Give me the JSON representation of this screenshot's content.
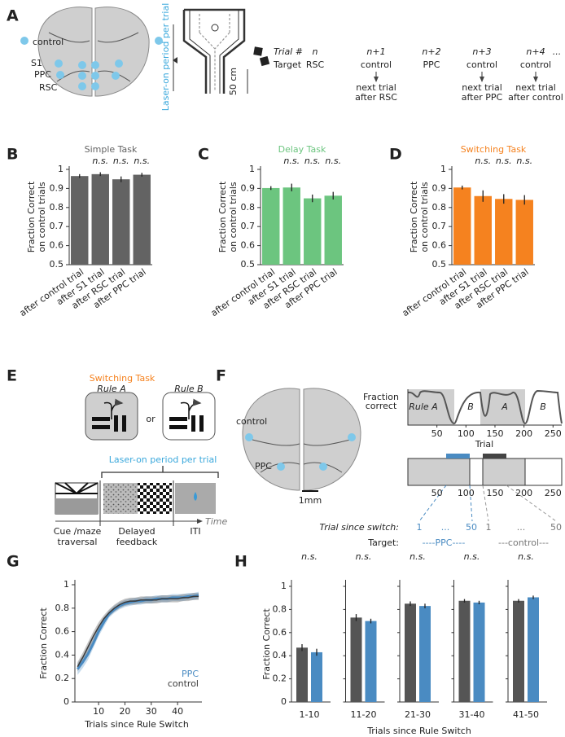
{
  "panel_labels": [
    "A",
    "B",
    "C",
    "D",
    "E",
    "F",
    "G",
    "H"
  ],
  "panel_a": {
    "brain_labels": [
      "control",
      "S1",
      "PPC",
      "RSC"
    ],
    "laser_label": "Laser-on period per trial",
    "scale_label": "50 cm",
    "trial_header": "Trial #",
    "target_header": "Target",
    "trials": [
      "n",
      "n+1",
      "n+2",
      "n+3",
      "n+4",
      "..."
    ],
    "targets": [
      "RSC",
      "control",
      "PPC",
      "control",
      "control"
    ],
    "notes": [
      [
        "next trial",
        "after RSC"
      ],
      [
        "next trial",
        "after PPC"
      ],
      [
        "next trial",
        "after control"
      ]
    ]
  },
  "chart_data": [
    {
      "type": "bar",
      "title": "Simple Task",
      "color": "#636363",
      "ylabel": [
        "Fraction Correct",
        "on control trials"
      ],
      "categories": [
        "after control trial",
        "after S1 trial",
        "after RSC trial",
        "after PPC trial"
      ],
      "values": [
        0.965,
        0.975,
        0.948,
        0.972
      ],
      "errors": [
        0.01,
        0.01,
        0.015,
        0.01
      ],
      "annotations": [
        {
          "index": 1,
          "label": "n.s."
        },
        {
          "index": 2,
          "label": "n.s."
        },
        {
          "index": 3,
          "label": "n.s."
        }
      ],
      "ylim": [
        0.5,
        1
      ],
      "yticks": [
        0.5,
        0.6,
        0.7,
        0.8,
        0.9,
        1
      ]
    },
    {
      "type": "bar",
      "title": "Delay Task",
      "color": "#6cc57f",
      "ylabel": [
        "Fraction Correct",
        "on control trials"
      ],
      "categories": [
        "after control trial",
        "after S1 trial",
        "after RSC trial",
        "after PPC trial"
      ],
      "values": [
        0.902,
        0.905,
        0.848,
        0.862
      ],
      "errors": [
        0.01,
        0.02,
        0.02,
        0.02
      ],
      "annotations": [
        {
          "index": 1,
          "label": "n.s."
        },
        {
          "index": 2,
          "label": "n.s."
        },
        {
          "index": 3,
          "label": "n.s."
        }
      ],
      "ylim": [
        0.5,
        1
      ],
      "yticks": [
        0.5,
        0.6,
        0.7,
        0.8,
        0.9,
        1
      ]
    },
    {
      "type": "bar",
      "title": "Switching Task",
      "color": "#f5821f",
      "ylabel": [
        "Fraction Correct",
        "on control trials"
      ],
      "categories": [
        "after control trial",
        "after S1 trial",
        "after RSC trial",
        "after PPC trial"
      ],
      "values": [
        0.905,
        0.86,
        0.845,
        0.84
      ],
      "errors": [
        0.01,
        0.03,
        0.025,
        0.025
      ],
      "annotations": [
        {
          "index": 1,
          "label": "n.s."
        },
        {
          "index": 2,
          "label": "n.s."
        },
        {
          "index": 3,
          "label": "n.s."
        }
      ],
      "ylim": [
        0.5,
        1
      ],
      "yticks": [
        0.5,
        0.6,
        0.7,
        0.8,
        0.9,
        1
      ]
    },
    {
      "type": "line",
      "xlabel": "Trials since Rule Switch",
      "ylabel": "Fraction Correct",
      "x": [
        2,
        4,
        6,
        8,
        10,
        12,
        14,
        16,
        18,
        20,
        22,
        24,
        26,
        28,
        30,
        32,
        34,
        36,
        38,
        40,
        42,
        44,
        46,
        48
      ],
      "xlim": [
        1,
        48
      ],
      "xticks": [
        10,
        20,
        30,
        40
      ],
      "ylim": [
        0,
        1
      ],
      "yticks": [
        0,
        0.2,
        0.4,
        0.6,
        0.8,
        1
      ],
      "series": [
        {
          "name": "PPC",
          "color": "#4a8bc2",
          "values": [
            0.28,
            0.34,
            0.41,
            0.5,
            0.6,
            0.68,
            0.75,
            0.79,
            0.82,
            0.84,
            0.85,
            0.86,
            0.86,
            0.87,
            0.87,
            0.88,
            0.88,
            0.88,
            0.89,
            0.89,
            0.89,
            0.9,
            0.9,
            0.91
          ],
          "errors": [
            0.05,
            0.05,
            0.05,
            0.04,
            0.04,
            0.04,
            0.03,
            0.03,
            0.03,
            0.03,
            0.03,
            0.03,
            0.03,
            0.03,
            0.03,
            0.03,
            0.03,
            0.03,
            0.03,
            0.03,
            0.03,
            0.03,
            0.03,
            0.03
          ]
        },
        {
          "name": "control",
          "color": "#3a3a3a",
          "values": [
            0.3,
            0.38,
            0.47,
            0.56,
            0.64,
            0.71,
            0.76,
            0.8,
            0.83,
            0.85,
            0.86,
            0.86,
            0.87,
            0.87,
            0.87,
            0.87,
            0.88,
            0.88,
            0.88,
            0.88,
            0.89,
            0.89,
            0.9,
            0.9
          ],
          "errors": [
            0.04,
            0.04,
            0.04,
            0.04,
            0.04,
            0.03,
            0.03,
            0.03,
            0.03,
            0.03,
            0.03,
            0.03,
            0.03,
            0.03,
            0.03,
            0.03,
            0.03,
            0.03,
            0.03,
            0.03,
            0.03,
            0.03,
            0.03,
            0.03
          ]
        }
      ]
    },
    {
      "type": "grouped_bar",
      "xlabel": "Trials since Rule Switch",
      "ylabel": "Fraction Correct",
      "categories": [
        "1-10",
        "11-20",
        "21-30",
        "31-40",
        "41-50"
      ],
      "series": [
        {
          "color": "#555555",
          "values": [
            0.47,
            0.73,
            0.85,
            0.875,
            0.875
          ],
          "errors": [
            0.03,
            0.03,
            0.02,
            0.015,
            0.015
          ]
        },
        {
          "color": "#4a8bc2",
          "values": [
            0.43,
            0.7,
            0.83,
            0.86,
            0.905
          ],
          "errors": [
            0.03,
            0.02,
            0.02,
            0.015,
            0.015
          ]
        }
      ],
      "annotations": [
        {
          "index": 0,
          "label": "n.s."
        },
        {
          "index": 1,
          "label": "n.s."
        },
        {
          "index": 2,
          "label": "n.s."
        },
        {
          "index": 3,
          "label": "n.s."
        },
        {
          "index": 4,
          "label": "n.s."
        }
      ],
      "ylim": [
        0,
        1
      ],
      "yticks": [
        0,
        0.2,
        0.4,
        0.6,
        0.8,
        1
      ]
    }
  ],
  "panel_e": {
    "title": "Switching Task",
    "rules": [
      "Rule A",
      "Rule B"
    ],
    "or": "or",
    "laser_label": "Laser-on period per trial",
    "phases": [
      [
        "Cue /maze",
        "traversal"
      ],
      [
        "Delayed",
        "feedback"
      ],
      [
        "ITI"
      ]
    ],
    "time_label": "Time"
  },
  "panel_f": {
    "brain_labels": [
      "control",
      "PPC"
    ],
    "scale_label": "1mm",
    "ylabel": [
      "Fraction",
      "correct"
    ],
    "blocks": [
      "Rule A",
      "B",
      "A",
      "B"
    ],
    "xlabel": "Trial",
    "xlim": [
      0,
      265
    ],
    "xticks": [
      50,
      100,
      150,
      200,
      250
    ],
    "since_label": "Trial since switch:",
    "since_ppc": [
      "1",
      "...",
      "50"
    ],
    "since_control": [
      "1",
      "...",
      "50"
    ],
    "target_label": "Target:",
    "targets": [
      "----PPC----",
      "---control---"
    ]
  }
}
